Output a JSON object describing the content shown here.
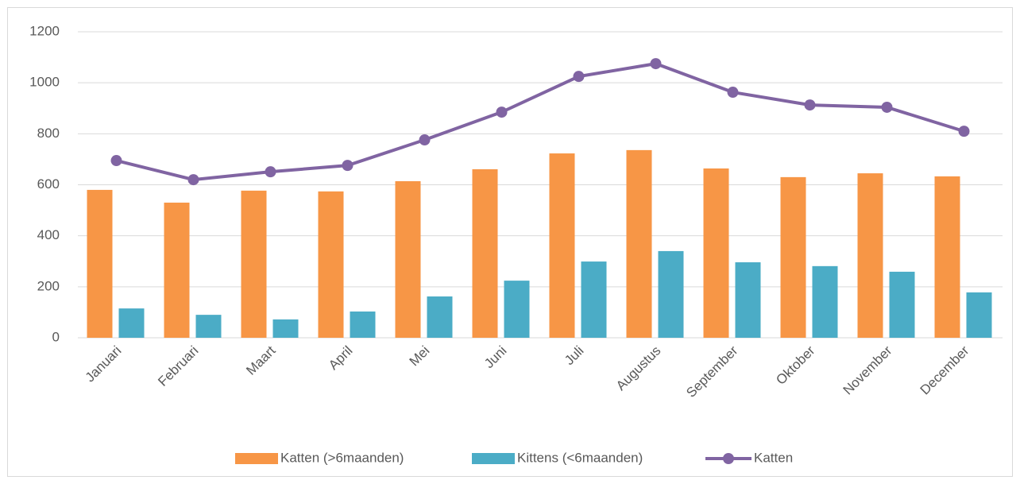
{
  "chart_data": {
    "type": "bar_line",
    "categories": [
      "Januari",
      "Februari",
      "Maart",
      "April",
      "Mei",
      "Juni",
      "Juli",
      "Augustus",
      "September",
      "Oktober",
      "November",
      "December"
    ],
    "series": [
      {
        "name": "Katten (>6maanden)",
        "color": "#f79646",
        "type": "bar",
        "values": [
          580,
          530,
          577,
          574,
          614,
          661,
          723,
          736,
          664,
          630,
          645,
          633
        ]
      },
      {
        "name": "Kittens (<6maanden)",
        "color": "#4bacc6",
        "type": "bar",
        "values": [
          115,
          90,
          72,
          103,
          162,
          224,
          299,
          340,
          296,
          281,
          259,
          178
        ]
      },
      {
        "name": "Katten",
        "color": "#8064a2",
        "type": "line",
        "values": [
          695,
          620,
          651,
          676,
          776,
          885,
          1025,
          1075,
          963,
          913,
          904,
          810
        ]
      }
    ],
    "ylim": [
      0,
      1200
    ],
    "yticks": [
      0,
      200,
      400,
      600,
      800,
      1000,
      1200
    ],
    "grid": true,
    "legend": "bottom"
  }
}
